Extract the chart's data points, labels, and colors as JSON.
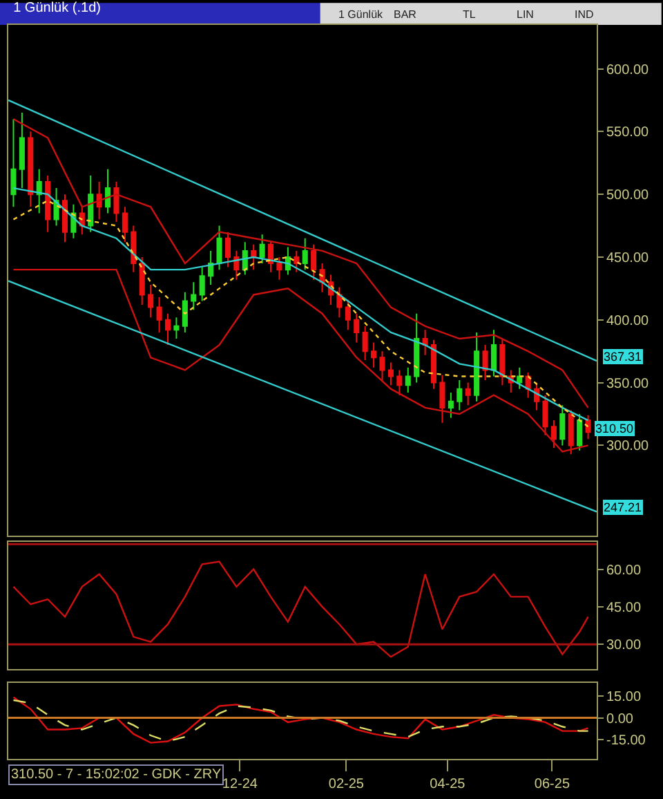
{
  "chart_data": [
    {
      "type": "candlestick",
      "title": "1 Günlük (.1d)",
      "annotations": [
        "1 Günlük",
        "BAR",
        "TL",
        "LIN",
        "IND",
        {
          "text": "367.31",
          "x": "2025-06-27",
          "y": 367.31
        },
        {
          "text": "310.50",
          "x": "2025-06-22",
          "y": 310.5
        },
        {
          "text": "247.21",
          "x": "2025-06-27",
          "y": 247.21
        }
      ],
      "x": [
        "2024-07-22",
        "2024-07-27",
        "2024-08-01",
        "2024-08-06",
        "2024-08-11",
        "2024-08-16",
        "2024-08-21",
        "2024-08-26",
        "2024-08-31",
        "2024-09-05",
        "2024-09-10",
        "2024-09-15",
        "2024-09-20",
        "2024-09-25",
        "2024-09-30",
        "2024-10-05",
        "2024-10-10",
        "2024-10-15",
        "2024-10-20",
        "2024-10-25",
        "2024-10-30",
        "2024-11-04",
        "2024-11-09",
        "2024-11-14",
        "2024-11-19",
        "2024-11-24",
        "2024-11-29",
        "2024-12-04",
        "2024-12-09",
        "2024-12-14",
        "2024-12-19",
        "2024-12-24",
        "2024-12-29",
        "2025-01-03",
        "2025-01-08",
        "2025-01-13",
        "2025-01-18",
        "2025-01-23",
        "2025-01-28",
        "2025-02-02",
        "2025-02-07",
        "2025-02-12",
        "2025-02-17",
        "2025-02-22",
        "2025-02-27",
        "2025-03-04",
        "2025-03-09",
        "2025-03-14",
        "2025-03-19",
        "2025-03-24",
        "2025-03-29",
        "2025-04-03",
        "2025-04-08",
        "2025-04-13",
        "2025-04-18",
        "2025-04-23",
        "2025-04-28",
        "2025-05-03",
        "2025-05-08",
        "2025-05-13",
        "2025-05-18",
        "2025-05-23",
        "2025-05-28",
        "2025-06-02",
        "2025-06-07",
        "2025-06-12",
        "2025-06-17",
        "2025-06-22"
      ],
      "ohlc": [
        [
          500,
          560,
          490,
          520
        ],
        [
          520,
          565,
          505,
          545
        ],
        [
          545,
          550,
          490,
          500
        ],
        [
          500,
          520,
          485,
          510
        ],
        [
          510,
          515,
          470,
          480
        ],
        [
          480,
          505,
          475,
          495
        ],
        [
          495,
          500,
          462,
          470
        ],
        [
          470,
          492,
          465,
          485
        ],
        [
          485,
          490,
          468,
          475
        ],
        [
          475,
          515,
          470,
          500
        ],
        [
          500,
          510,
          480,
          490
        ],
        [
          490,
          520,
          485,
          505
        ],
        [
          505,
          510,
          478,
          485
        ],
        [
          485,
          490,
          462,
          470
        ],
        [
          470,
          475,
          438,
          445
        ],
        [
          445,
          450,
          412,
          420
        ],
        [
          420,
          428,
          402,
          410
        ],
        [
          410,
          418,
          390,
          400
        ],
        [
          400,
          405,
          380,
          392
        ],
        [
          392,
          402,
          385,
          395
        ],
        [
          395,
          422,
          390,
          415
        ],
        [
          415,
          430,
          408,
          420
        ],
        [
          420,
          442,
          415,
          435
        ],
        [
          435,
          455,
          428,
          445
        ],
        [
          445,
          475,
          440,
          465
        ],
        [
          465,
          470,
          442,
          450
        ],
        [
          450,
          455,
          432,
          440
        ],
        [
          440,
          462,
          436,
          455
        ],
        [
          455,
          460,
          440,
          450
        ],
        [
          450,
          468,
          445,
          460
        ],
        [
          460,
          463,
          438,
          445
        ],
        [
          445,
          450,
          432,
          440
        ],
        [
          440,
          458,
          436,
          450
        ],
        [
          450,
          455,
          438,
          445
        ],
        [
          445,
          465,
          440,
          455
        ],
        [
          455,
          460,
          432,
          440
        ],
        [
          440,
          445,
          422,
          430
        ],
        [
          430,
          436,
          412,
          420
        ],
        [
          420,
          426,
          402,
          410
        ],
        [
          410,
          416,
          392,
          400
        ],
        [
          400,
          405,
          382,
          390
        ],
        [
          390,
          395,
          368,
          375
        ],
        [
          375,
          382,
          362,
          370
        ],
        [
          370,
          375,
          352,
          360
        ],
        [
          360,
          366,
          348,
          355
        ],
        [
          355,
          360,
          340,
          348
        ],
        [
          348,
          362,
          342,
          355
        ],
        [
          355,
          405,
          350,
          385
        ],
        [
          385,
          392,
          372,
          380
        ],
        [
          380,
          384,
          345,
          350
        ],
        [
          350,
          356,
          318,
          330
        ],
        [
          330,
          342,
          322,
          335
        ],
        [
          335,
          352,
          328,
          345
        ],
        [
          345,
          350,
          332,
          340
        ],
        [
          340,
          390,
          335,
          375
        ],
        [
          375,
          380,
          352,
          360
        ],
        [
          360,
          392,
          355,
          380
        ],
        [
          380,
          384,
          348,
          355
        ],
        [
          355,
          360,
          342,
          350
        ],
        [
          350,
          362,
          345,
          355
        ],
        [
          355,
          358,
          338,
          345
        ],
        [
          345,
          350,
          328,
          335
        ],
        [
          335,
          340,
          308,
          315
        ],
        [
          315,
          320,
          298,
          305
        ],
        [
          305,
          332,
          300,
          325
        ],
        [
          325,
          328,
          293,
          300
        ],
        [
          300,
          325,
          296,
          320
        ],
        [
          320,
          324,
          305,
          310.5
        ]
      ],
      "series": [
        {
          "type": "line",
          "color": "#cc1111",
          "x": [
            "2024-07-22",
            "2024-08-11",
            "2024-08-31",
            "2024-09-20",
            "2024-10-10",
            "2024-10-30",
            "2024-11-19",
            "2024-12-09",
            "2024-12-29",
            "2025-01-18",
            "2025-02-07",
            "2025-02-27",
            "2025-03-19",
            "2025-04-08",
            "2025-04-28",
            "2025-05-18",
            "2025-06-07",
            "2025-06-22"
          ],
          "values": [
            560,
            545,
            490,
            500,
            490,
            445,
            470,
            465,
            460,
            455,
            445,
            410,
            395,
            385,
            388,
            375,
            360,
            330
          ]
        },
        {
          "type": "line",
          "color": "#cc1111",
          "x": [
            "2024-07-22",
            "2024-08-11",
            "2024-08-31",
            "2024-09-20",
            "2024-10-10",
            "2024-10-30",
            "2024-11-19",
            "2024-12-09",
            "2024-12-29",
            "2025-01-18",
            "2025-02-07",
            "2025-02-27",
            "2025-03-19",
            "2025-04-08",
            "2025-04-28",
            "2025-05-18",
            "2025-06-07",
            "2025-06-22"
          ],
          "values": [
            440,
            440,
            440,
            440,
            370,
            360,
            380,
            420,
            425,
            405,
            370,
            345,
            330,
            325,
            340,
            325,
            295,
            300
          ]
        },
        {
          "type": "line",
          "color": "#33cccc",
          "x": [
            "2024-07-22",
            "2024-08-11",
            "2024-08-31",
            "2024-09-20",
            "2024-10-10",
            "2024-10-30",
            "2024-11-19",
            "2024-12-09",
            "2024-12-29",
            "2025-01-18",
            "2025-02-07",
            "2025-02-27",
            "2025-03-19",
            "2025-04-08",
            "2025-04-28",
            "2025-05-18",
            "2025-06-07",
            "2025-06-22"
          ],
          "values": [
            505,
            500,
            475,
            465,
            440,
            440,
            445,
            450,
            445,
            430,
            410,
            390,
            380,
            365,
            360,
            345,
            330,
            320
          ]
        },
        {
          "type": "line",
          "color": "#ffcc33",
          "line_style": "dotted",
          "x": [
            "2024-07-22",
            "2024-08-11",
            "2024-08-31",
            "2024-09-20",
            "2024-10-10",
            "2024-10-30",
            "2024-11-19",
            "2024-12-09",
            "2024-12-29",
            "2025-01-18",
            "2025-02-07",
            "2025-02-27",
            "2025-03-19",
            "2025-04-08",
            "2025-04-28",
            "2025-05-18",
            "2025-06-07",
            "2025-06-22"
          ],
          "values": [
            480,
            495,
            480,
            475,
            430,
            405,
            425,
            445,
            450,
            435,
            405,
            375,
            358,
            355,
            355,
            355,
            330,
            315
          ]
        },
        {
          "type": "line",
          "color": "#33cccc",
          "x": [
            "2024-07-19",
            "2025-06-27"
          ],
          "values": [
            575,
            367.31
          ]
        },
        {
          "type": "line",
          "color": "#33cccc",
          "x": [
            "2024-07-19",
            "2025-06-27"
          ],
          "values": [
            431,
            247.21
          ]
        }
      ],
      "xlim": [
        "2024-07-19",
        "2025-06-27"
      ],
      "ylim": [
        228,
        635
      ],
      "yticks": [
        {
          "value": 300,
          "label": "300.00"
        },
        {
          "value": 350,
          "label": "350.00"
        },
        {
          "value": 400,
          "label": "400.00"
        },
        {
          "value": 450,
          "label": "450.00"
        },
        {
          "value": 500,
          "label": "500.00"
        },
        {
          "value": 550,
          "label": "550.00"
        },
        {
          "value": 600,
          "label": "600.00"
        }
      ],
      "tick_labels": "y",
      "marker": "none"
    },
    {
      "type": "line",
      "x": [
        "2024-07-22",
        "2024-08-01",
        "2024-08-11",
        "2024-08-21",
        "2024-08-31",
        "2024-09-10",
        "2024-09-20",
        "2024-09-30",
        "2024-10-10",
        "2024-10-20",
        "2024-10-30",
        "2024-11-09",
        "2024-11-19",
        "2024-11-29",
        "2024-12-09",
        "2024-12-19",
        "2024-12-29",
        "2025-01-08",
        "2025-01-18",
        "2025-01-28",
        "2025-02-07",
        "2025-02-17",
        "2025-02-27",
        "2025-03-09",
        "2025-03-19",
        "2025-03-29",
        "2025-04-08",
        "2025-04-18",
        "2025-04-28",
        "2025-05-08",
        "2025-05-18",
        "2025-05-28",
        "2025-06-07",
        "2025-06-17",
        "2025-06-22"
      ],
      "series": [
        {
          "color": "#cc1111",
          "values": [
            53,
            46,
            48,
            41,
            53,
            58,
            50,
            33,
            31,
            38,
            49,
            62,
            63,
            53,
            60,
            49,
            39,
            53,
            45,
            38,
            30,
            31,
            25,
            29,
            58,
            36,
            49,
            51,
            58,
            49,
            49,
            37,
            26,
            35,
            41
          ]
        }
      ],
      "ref_lines": [
        {
          "axis": "y",
          "value": 30,
          "color": "#aa1111"
        },
        {
          "axis": "y",
          "value": 70,
          "color": "#aa1111"
        }
      ],
      "xlim": [
        "2024-07-19",
        "2025-06-27"
      ],
      "ylim": [
        20,
        71
      ],
      "yticks": [
        {
          "value": 30,
          "label": "30.00"
        },
        {
          "value": 45,
          "label": "45.00"
        },
        {
          "value": 60,
          "label": "60.00"
        }
      ],
      "tick_labels": "y",
      "marker": "none"
    },
    {
      "type": "line",
      "annotations": [
        "310.50 - 7 - 15:02:02 - GDK - ZRY"
      ],
      "x": [
        "2024-07-22",
        "2024-08-01",
        "2024-08-11",
        "2024-08-21",
        "2024-08-31",
        "2024-09-10",
        "2024-09-20",
        "2024-09-30",
        "2024-10-10",
        "2024-10-20",
        "2024-10-30",
        "2024-11-09",
        "2024-11-19",
        "2024-11-29",
        "2024-12-09",
        "2024-12-19",
        "2024-12-29",
        "2025-01-08",
        "2025-01-18",
        "2025-01-28",
        "2025-02-07",
        "2025-02-17",
        "2025-02-27",
        "2025-03-09",
        "2025-03-19",
        "2025-03-29",
        "2025-04-08",
        "2025-04-18",
        "2025-04-28",
        "2025-05-08",
        "2025-05-18",
        "2025-05-28",
        "2025-06-07",
        "2025-06-17",
        "2025-06-22"
      ],
      "series": [
        {
          "color": "#dd1111",
          "values": [
            14,
            6,
            -8,
            -8,
            -7,
            0,
            0,
            -11,
            -17,
            -16,
            -10,
            0,
            8,
            9,
            6,
            4,
            -3,
            -1,
            0,
            -3,
            -8,
            -11,
            -13,
            -14,
            -1,
            -8,
            -6,
            -2,
            2,
            0,
            -1,
            -3,
            -9,
            -9,
            -7
          ]
        },
        {
          "color": "#dddd66",
          "line_style": "dashed",
          "values": [
            12,
            10,
            2,
            -5,
            -8,
            -4,
            0,
            -5,
            -12,
            -16,
            -13,
            -5,
            3,
            8,
            7,
            5,
            1,
            -1,
            0,
            -2,
            -6,
            -9,
            -11,
            -13,
            -8,
            -6,
            -6,
            -4,
            0,
            1,
            0,
            -2,
            -6,
            -9,
            -9
          ]
        }
      ],
      "ref_lines": [
        {
          "axis": "y",
          "value": 0,
          "color": "#cc7722"
        }
      ],
      "xlim": [
        "2024-07-19",
        "2025-06-27"
      ],
      "ylim": [
        -28,
        24
      ],
      "xticks": [
        {
          "value": "2024-12-01",
          "label": "12-24"
        },
        {
          "value": "2025-02-01",
          "label": "02-25"
        },
        {
          "value": "2025-04-01",
          "label": "04-25"
        },
        {
          "value": "2025-06-01",
          "label": "06-25"
        }
      ],
      "yticks": [
        {
          "value": -15,
          "label": "-15.00"
        },
        {
          "value": 0,
          "label": "0.00"
        },
        {
          "value": 15,
          "label": "15.00"
        }
      ],
      "marker": "none"
    }
  ]
}
